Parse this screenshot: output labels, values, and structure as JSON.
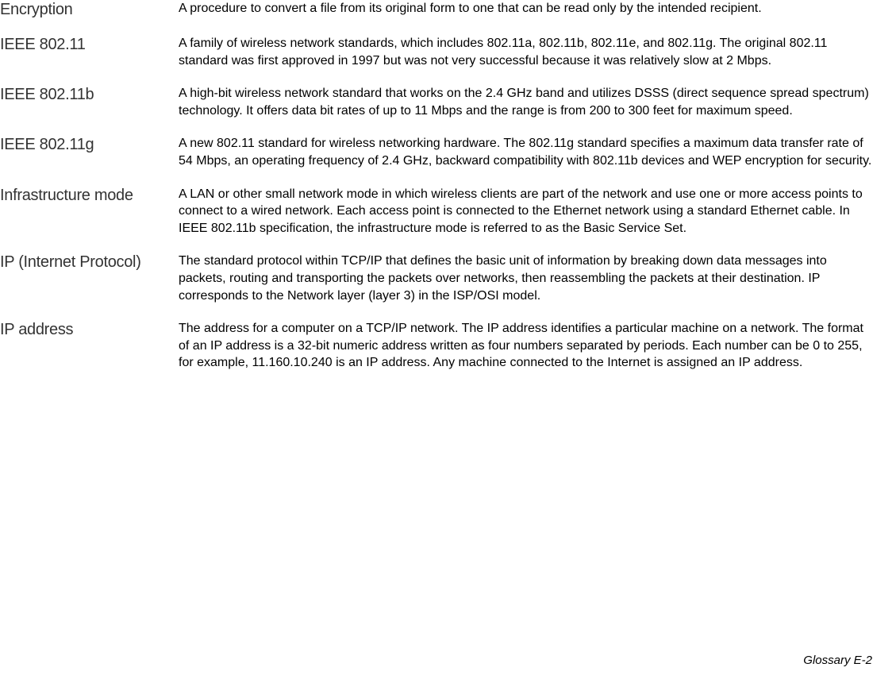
{
  "glossary": {
    "entries": [
      {
        "term": "Encryption",
        "definition": "A procedure to convert a file from its original form to one that can be read only by the intended recipient."
      },
      {
        "term": "IEEE 802.11",
        "definition": "A family of wireless network standards, which includes 802.11a, 802.11b, 802.11e, and 802.11g. The original 802.11 standard was first approved in 1997 but was not very successful because it was relatively slow at 2 Mbps."
      },
      {
        "term": "IEEE 802.11b",
        "definition": "A high-bit wireless network standard that works on the 2.4 GHz band and utilizes DSSS (direct sequence spread spectrum) technology. It offers data bit rates of up to 11 Mbps and the range is from 200 to 300 feet for maximum speed."
      },
      {
        "term": "IEEE 802.11g",
        "definition": "A new 802.11 standard for wireless networking hardware. The 802.11g standard specifies a maximum data transfer rate of 54 Mbps, an operating frequency of 2.4 GHz, backward compatibility with 802.11b devices and WEP encryption for security."
      },
      {
        "term": "Infrastructure mode",
        "definition": "A LAN or other small network mode in which wireless clients are part of the network and use one or more access points to connect to a wired network. Each access point is connected to the Ethernet network using a standard Ethernet cable. In IEEE 802.11b specification, the infrastructure mode is referred to as the Basic Service Set."
      },
      {
        "term": "IP (Internet Protocol)",
        "definition": "The standard protocol within TCP/IP that defines the basic unit of information by breaking down data messages into packets, routing and transporting the packets over networks, then reassembling the packets at their destination. IP corresponds to the Network layer (layer 3) in the ISP/OSI model."
      },
      {
        "term": "IP address",
        "definition": "The address for a computer on a TCP/IP network. The IP address identifies a particular machine on a network. The format of an IP address is a 32-bit numeric address written as four numbers separated by periods. Each number can be 0 to 255, for example, 11.160.10.240 is an IP address. Any machine connected to the Internet is assigned an IP address."
      }
    ],
    "footer": "Glossary  E-2"
  }
}
